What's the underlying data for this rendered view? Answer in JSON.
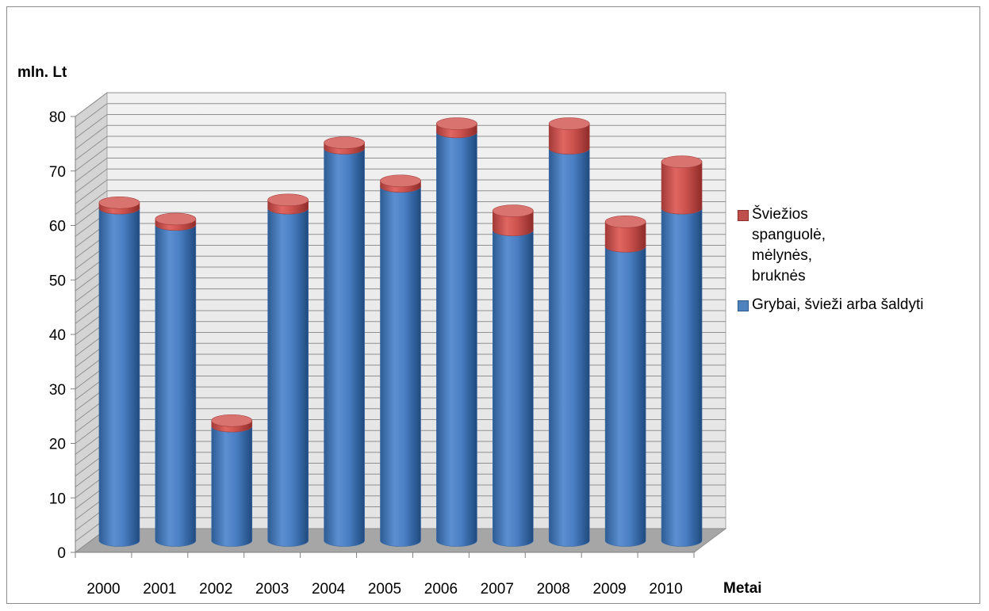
{
  "chart_data": {
    "type": "bar",
    "stacked": true,
    "three_d": true,
    "title": "",
    "ylabel": "mln. Lt",
    "xlabel": "Metai",
    "ylim": [
      0,
      80
    ],
    "yticks": [
      0,
      10,
      20,
      30,
      40,
      50,
      60,
      70,
      80
    ],
    "gridlines": true,
    "legend_position": "right",
    "categories": [
      "2000",
      "2001",
      "2002",
      "2003",
      "2004",
      "2005",
      "2006",
      "2007",
      "2008",
      "2009",
      "2010"
    ],
    "series": [
      {
        "name": "Grybai, švieži arba šaldyti",
        "color": "#4f81bd",
        "values": [
          61,
          58,
          21,
          61,
          72,
          65,
          75,
          57,
          72,
          54,
          61
        ]
      },
      {
        "name": "Šviežios spanguolė, mėlynės, bruknės",
        "color": "#c0504d",
        "values": [
          1,
          1,
          1,
          1.5,
          1,
          1,
          1.5,
          3.5,
          4.5,
          4.5,
          8.5
        ]
      }
    ]
  },
  "legend": {
    "items": [
      {
        "label": "Šviežios spanguolė, mėlynės, bruknės",
        "color": "#c0504d"
      },
      {
        "label": "Grybai, švieži arba šaldyti",
        "color": "#4f81bd"
      }
    ]
  }
}
